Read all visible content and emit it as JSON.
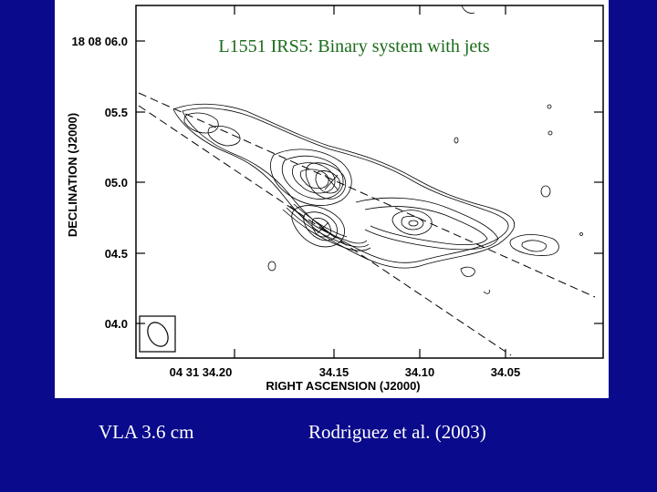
{
  "figure": {
    "title": "L1551 IRS5: Binary system with jets",
    "y_axis_label": "DECLINATION (J2000)",
    "x_axis_label": "RIGHT ASCENSION (J2000)",
    "y_ticks": [
      "18 08 06.0",
      "05.5",
      "05.0",
      "04.5",
      "04.0"
    ],
    "x_ticks": [
      "04 31 34.20",
      "34.15",
      "34.10",
      "34.05"
    ]
  },
  "captions": {
    "instrument": "VLA 3.6 cm",
    "reference": "Rodriguez et al. (2003)"
  },
  "colors": {
    "background": "#0a0a8c",
    "title": "#1b6b1b",
    "caption": "#ffffff"
  }
}
